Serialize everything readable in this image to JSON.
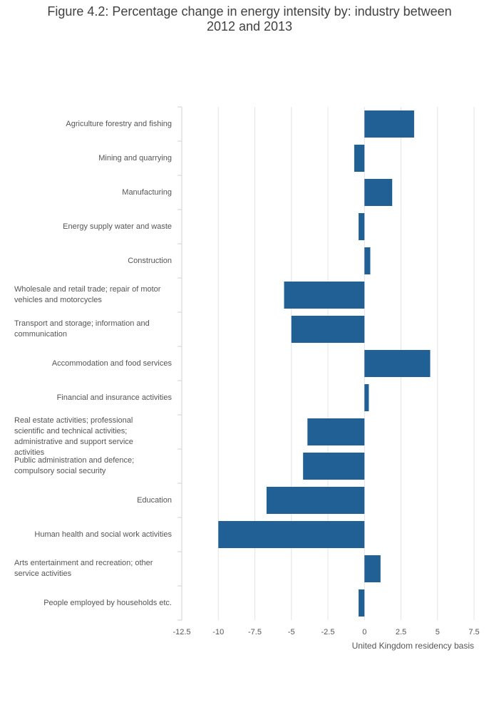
{
  "chart_data": {
    "type": "bar",
    "orientation": "horizontal",
    "title_lines": [
      "Figure 4.2: Percentage change in energy intensity by: industry between",
      "2012 and 2013"
    ],
    "categories": [
      "Agriculture forestry and fishing",
      "Mining and quarrying",
      "Manufacturing",
      "Energy supply water and waste",
      "Construction",
      "Wholesale and retail trade; repair of motor vehicles and motorcycles",
      "Transport and storage; information and communication",
      "Accommodation and food services",
      "Financial and insurance activities",
      "Real estate activities; professional scientific and technical activities; administrative and support service activities",
      "Public administration and defence; compulsory social security",
      "Education",
      "Human health and social work activities",
      "Arts entertainment and recreation; other service activities",
      "People employed by households etc."
    ],
    "category_lines": [
      [
        "Agriculture forestry and fishing"
      ],
      [
        "Mining and quarrying"
      ],
      [
        "Manufacturing"
      ],
      [
        "Energy supply water and waste"
      ],
      [
        "Construction"
      ],
      [
        "Wholesale and retail trade; repair of motor",
        "vehicles and motorcycles"
      ],
      [
        "Transport and storage; information and",
        "communication"
      ],
      [
        "Accommodation and food services"
      ],
      [
        "Financial and insurance activities"
      ],
      [
        "Real estate activities; professional",
        "scientific and technical activities;",
        "administrative and support service",
        "activities"
      ],
      [
        "Public administration and defence;",
        "compulsory social security"
      ],
      [
        "Education"
      ],
      [
        "Human health and social work activities"
      ],
      [
        "Arts entertainment and recreation; other",
        "service activities"
      ],
      [
        "People employed by households etc."
      ]
    ],
    "values": [
      3.4,
      -0.7,
      1.9,
      -0.4,
      0.4,
      -5.5,
      -5.0,
      4.5,
      0.3,
      -3.9,
      -4.2,
      -6.7,
      -10.0,
      1.1,
      -0.4
    ],
    "xlim": [
      -12.5,
      7.5
    ],
    "xticks": [
      -12.5,
      -10,
      -7.5,
      -5,
      -2.5,
      0,
      2.5,
      5,
      7.5
    ],
    "xtick_labels": [
      "-12.5",
      "-10",
      "-7.5",
      "-5",
      "-2.5",
      "0",
      "2.5",
      "5",
      "7.5"
    ],
    "xlabel": "United Kingdom residency basis",
    "ylabel": "",
    "grid": true,
    "bar_color": "#206095",
    "grid_color": "#e4e4e4"
  }
}
